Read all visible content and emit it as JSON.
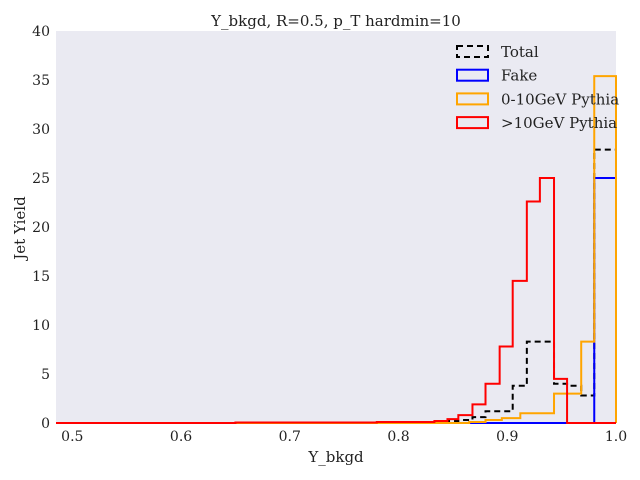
{
  "chart_data": {
    "type": "histogram",
    "title": "Y_bkgd, R=0.5, p_T hardmin=10",
    "xlabel": "Y_bkgd",
    "ylabel": "Jet Yield",
    "xlim": [
      0.485,
      1.0
    ],
    "ylim": [
      0,
      40
    ],
    "xticks": [
      "0.5",
      "0.6",
      "0.7",
      "0.8",
      "0.9",
      "1.0"
    ],
    "yticks": [
      "0",
      "5",
      "10",
      "15",
      "20",
      "25",
      "30",
      "35",
      "40"
    ],
    "grid": false,
    "background": "#eaeaf2",
    "legend_position": "top-right",
    "series": [
      {
        "name": "Total",
        "color": "#000000",
        "style": "dashed",
        "edges": [
          0.485,
          0.843,
          0.855,
          0.868,
          0.88,
          0.893,
          0.905,
          0.918,
          0.93,
          0.943,
          0.955,
          0.968,
          0.98,
          1.0
        ],
        "values": [
          0,
          0.2,
          0.3,
          0.6,
          1.2,
          1.2,
          3.8,
          8.3,
          8.3,
          4.0,
          3.8,
          2.8,
          27.9
        ]
      },
      {
        "name": "Fake",
        "color": "#0000ff",
        "style": "solid",
        "edges": [
          0.485,
          0.98,
          1.0
        ],
        "values": [
          0,
          25.0
        ]
      },
      {
        "name": "0-10GeV Pythia",
        "color": "#ffa500",
        "style": "solid",
        "edges": [
          0.485,
          0.865,
          0.88,
          0.895,
          0.912,
          0.93,
          0.943,
          0.958,
          0.968,
          0.98,
          1.0
        ],
        "values": [
          0,
          0.1,
          0.3,
          0.5,
          1.0,
          1.0,
          3.0,
          3.0,
          8.3,
          35.4
        ]
      },
      {
        "name": ">10GeV Pythia",
        "color": "#ff0000",
        "style": "solid",
        "edges": [
          0.485,
          0.65,
          0.78,
          0.833,
          0.845,
          0.855,
          0.868,
          0.88,
          0.893,
          0.905,
          0.918,
          0.93,
          0.943,
          0.955,
          1.0
        ],
        "values": [
          0,
          0.05,
          0.1,
          0.2,
          0.4,
          0.8,
          1.9,
          4.0,
          7.8,
          14.5,
          22.6,
          25.0,
          4.5,
          0
        ]
      }
    ]
  }
}
